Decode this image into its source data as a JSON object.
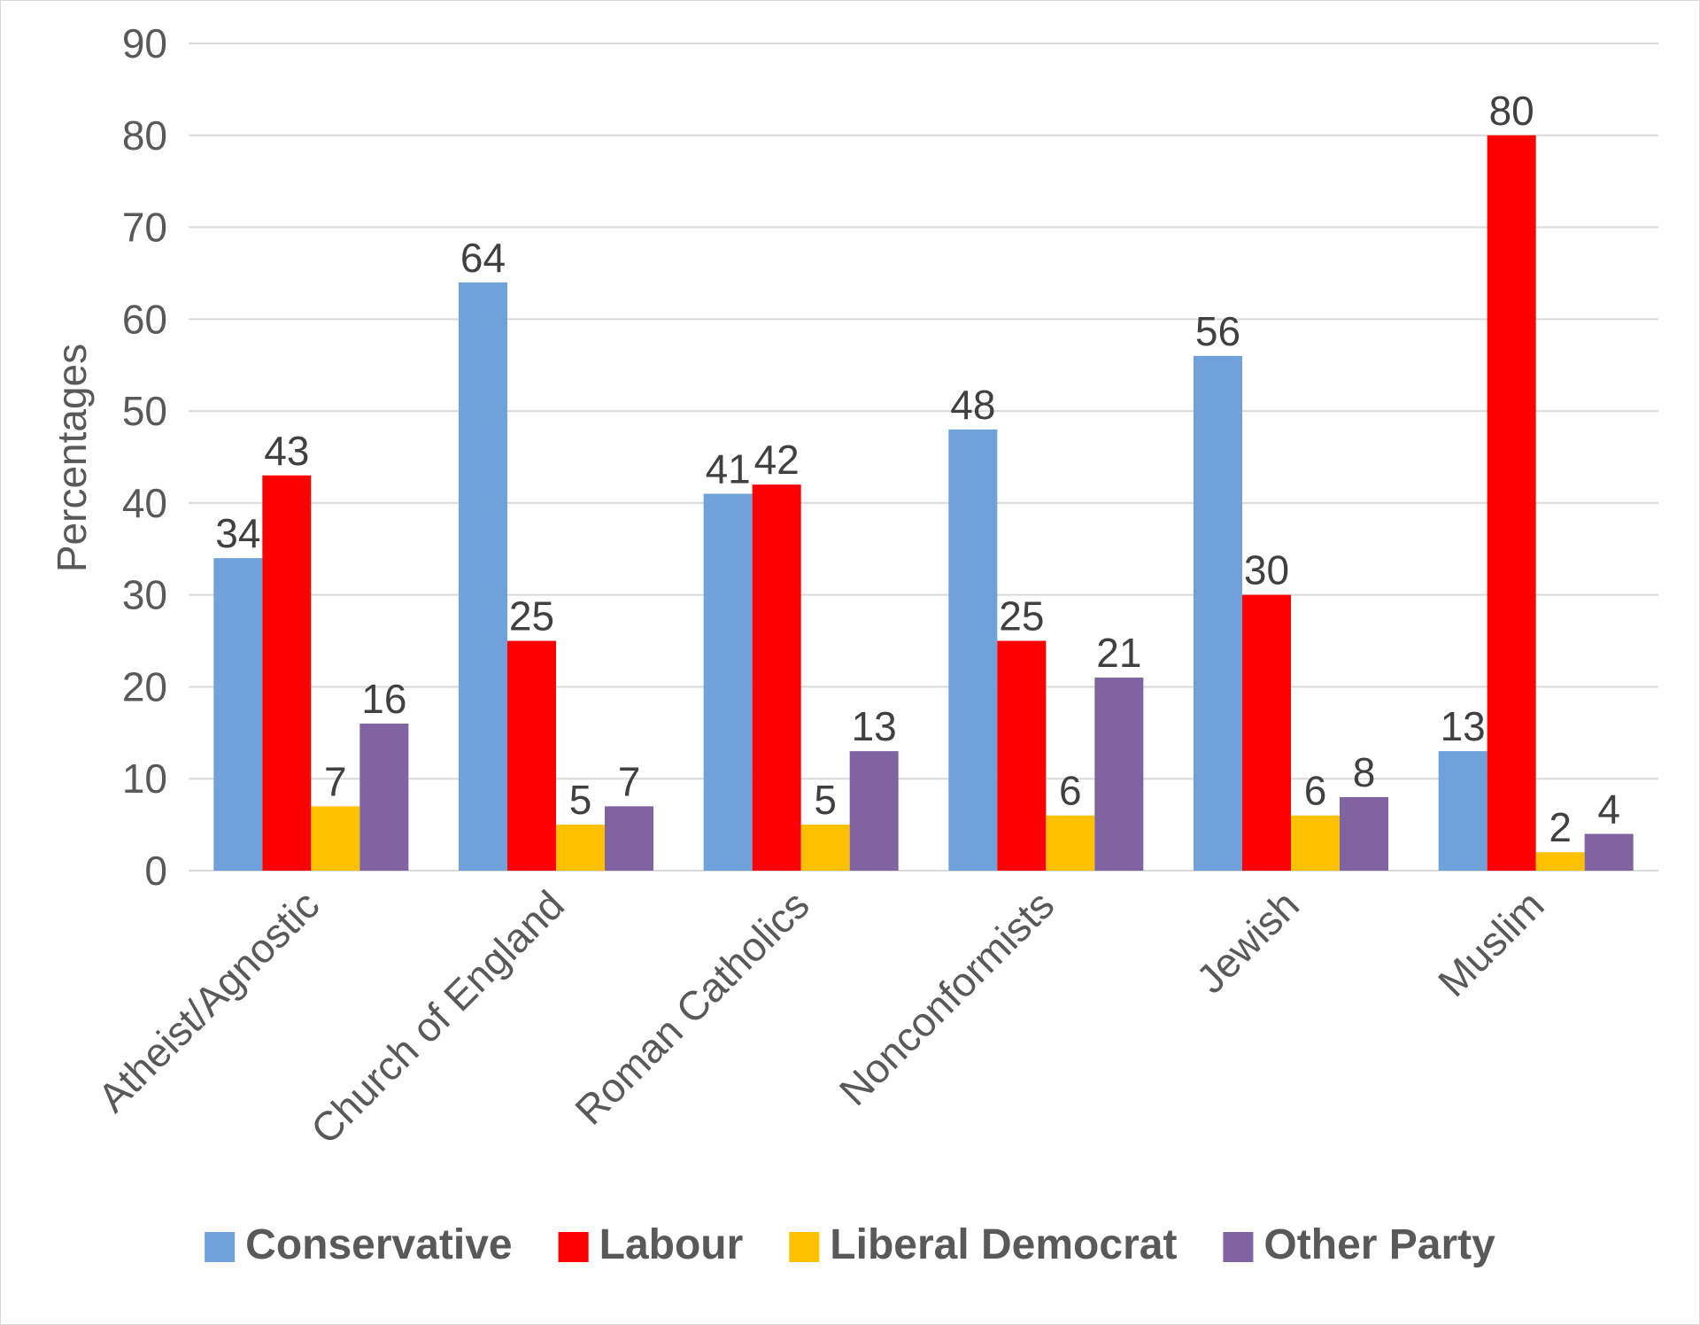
{
  "chart_data": {
    "type": "bar",
    "title": "",
    "xlabel": "",
    "ylabel": "Percentages",
    "ylim": [
      0,
      90
    ],
    "yticks": [
      0,
      10,
      20,
      30,
      40,
      50,
      60,
      70,
      80,
      90
    ],
    "grid": true,
    "legend_position": "bottom",
    "categories": [
      "Atheist/Agnostic",
      "Church of England",
      "Roman Catholics",
      "Nonconformists",
      "Jewish",
      "Muslim"
    ],
    "series": [
      {
        "name": "Conservative",
        "color": "#6fa1db",
        "values": [
          34,
          64,
          41,
          48,
          56,
          13
        ]
      },
      {
        "name": "Labour",
        "color": "#ff0000",
        "values": [
          43,
          25,
          42,
          25,
          30,
          80
        ]
      },
      {
        "name": "Liberal Democrat",
        "color": "#ffc000",
        "values": [
          7,
          5,
          5,
          6,
          6,
          2
        ]
      },
      {
        "name": "Other Party",
        "color": "#8064a2",
        "values": [
          16,
          7,
          13,
          21,
          8,
          4
        ]
      }
    ]
  }
}
